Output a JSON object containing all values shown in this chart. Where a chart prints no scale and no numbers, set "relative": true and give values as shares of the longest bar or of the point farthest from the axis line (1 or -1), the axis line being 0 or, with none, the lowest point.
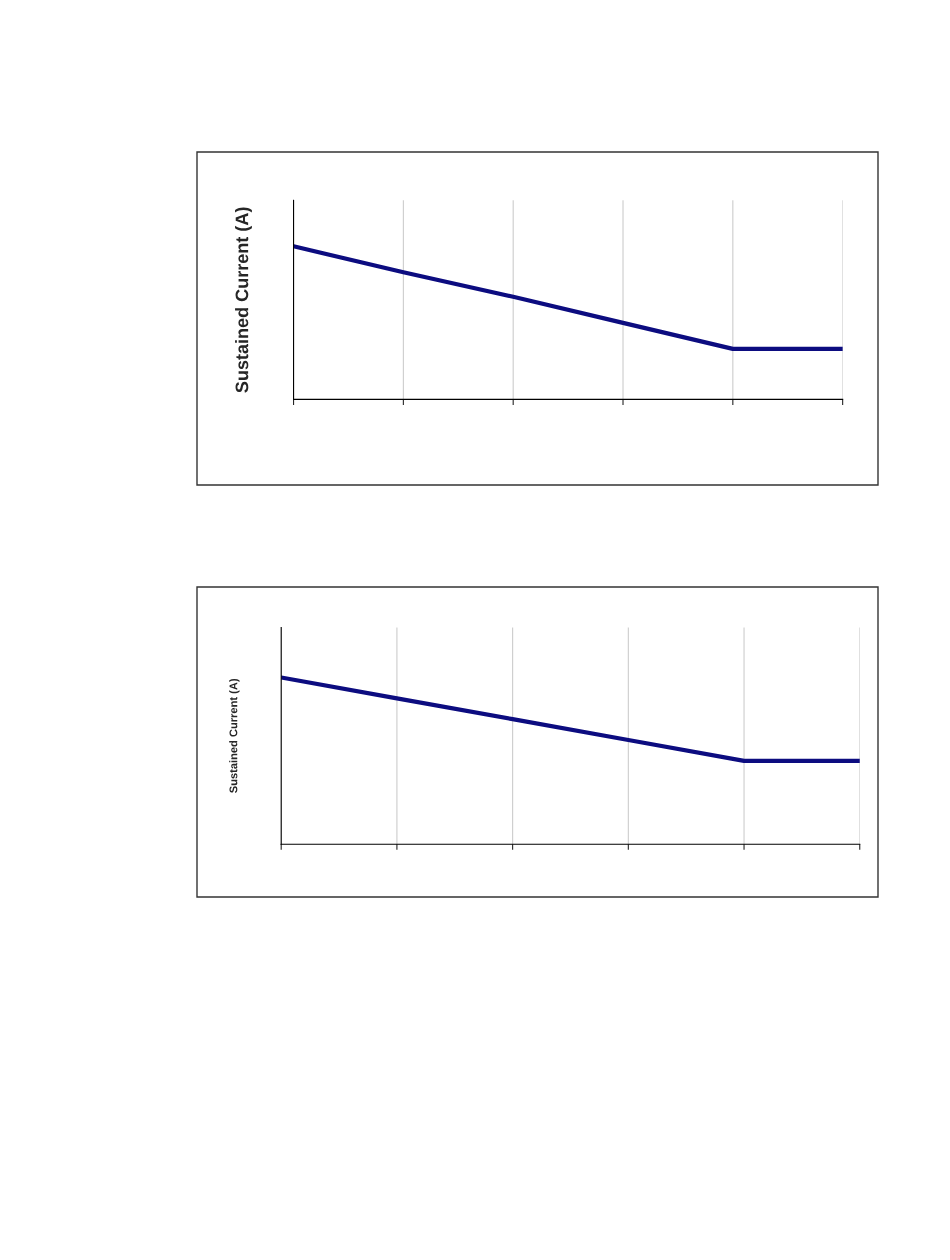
{
  "chart_data": [
    {
      "type": "line",
      "relative": true,
      "ylabel": "Sustained Current (A)",
      "categories": [
        null,
        null,
        null,
        null,
        null,
        null
      ],
      "grid": "x",
      "series": [
        {
          "color": "#0c0c80",
          "values": [
            1,
            0.83,
            0.67,
            0.5,
            0.33,
            0.33
          ]
        }
      ]
    },
    {
      "type": "line",
      "relative": true,
      "ylabel": "Sustained Current (A)",
      "categories": [
        null,
        null,
        null,
        null,
        null,
        null
      ],
      "grid": "x",
      "series": [
        {
          "color": "#0c0c80",
          "values": [
            1,
            0.875,
            0.75,
            0.625,
            0.5,
            0.5
          ]
        }
      ]
    }
  ]
}
